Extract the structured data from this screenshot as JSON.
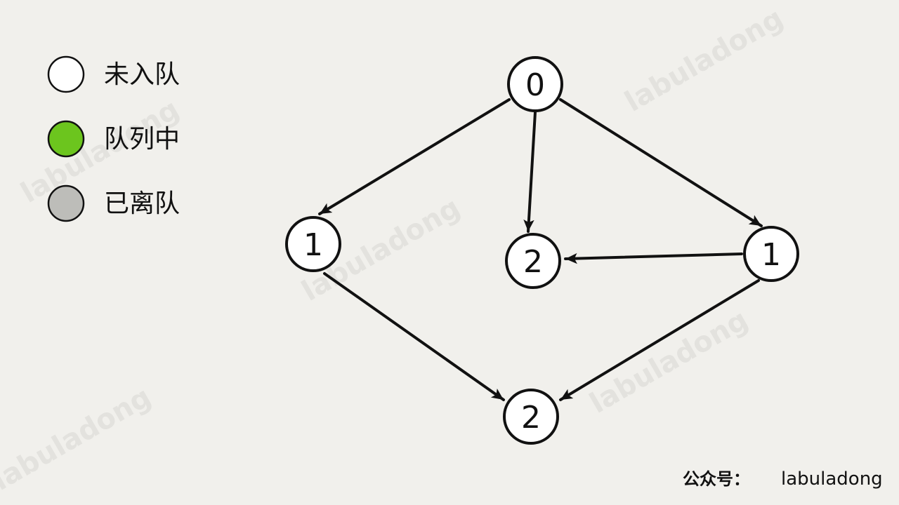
{
  "legend": {
    "items": [
      {
        "label": "未入队",
        "color": "#ffffff"
      },
      {
        "label": "队列中",
        "color": "#6cc51e"
      },
      {
        "label": "已离队",
        "color": "#bdbdb9"
      }
    ]
  },
  "graph": {
    "nodes": [
      {
        "id": "top",
        "label": "0"
      },
      {
        "id": "left",
        "label": "1"
      },
      {
        "id": "center",
        "label": "2"
      },
      {
        "id": "right",
        "label": "1"
      },
      {
        "id": "bottom",
        "label": "2"
      }
    ],
    "edges": [
      {
        "from": "top",
        "to": "left"
      },
      {
        "from": "top",
        "to": "center"
      },
      {
        "from": "top",
        "to": "right"
      },
      {
        "from": "right",
        "to": "center"
      },
      {
        "from": "left",
        "to": "bottom"
      },
      {
        "from": "right",
        "to": "bottom"
      }
    ]
  },
  "watermark": {
    "text": "labuladong"
  },
  "footer": {
    "prefix": "公众号：",
    "handle": "labuladong"
  }
}
